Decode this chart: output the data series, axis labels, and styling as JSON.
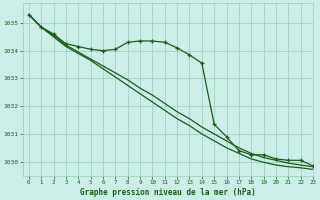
{
  "title": "Graphe pression niveau de la mer (hPa)",
  "background_color": "#cceee8",
  "grid_color": "#99ccbb",
  "line_color": "#1a5c1a",
  "xlim": [
    -0.5,
    23
  ],
  "ylim": [
    1029.5,
    1035.7
  ],
  "yticks": [
    1030,
    1031,
    1032,
    1033,
    1034,
    1035
  ],
  "xticks": [
    0,
    1,
    2,
    3,
    4,
    5,
    6,
    7,
    8,
    9,
    10,
    11,
    12,
    13,
    14,
    15,
    16,
    17,
    18,
    19,
    20,
    21,
    22,
    23
  ],
  "series1_x": [
    0,
    1,
    2,
    3,
    4,
    5,
    6,
    7,
    8,
    9,
    10,
    11,
    12,
    13,
    14,
    15,
    16,
    17,
    18,
    19,
    20,
    21,
    22,
    23
  ],
  "series1_y": [
    1035.3,
    1034.85,
    1034.6,
    1034.25,
    1034.15,
    1034.05,
    1034.0,
    1034.05,
    1034.3,
    1034.35,
    1034.35,
    1034.3,
    1034.1,
    1033.85,
    1033.55,
    1031.35,
    1030.9,
    1030.4,
    1030.25,
    1030.25,
    1030.1,
    1030.05,
    1030.05,
    1029.85
  ],
  "series2_x": [
    0,
    1,
    2,
    3,
    4,
    5,
    6,
    7,
    8,
    9,
    10,
    11,
    12,
    13,
    14,
    15,
    16,
    17,
    18,
    19,
    20,
    21,
    22,
    23
  ],
  "series2_y": [
    1035.3,
    1034.85,
    1034.55,
    1034.2,
    1033.95,
    1033.7,
    1033.45,
    1033.2,
    1032.95,
    1032.65,
    1032.4,
    1032.1,
    1031.8,
    1031.55,
    1031.25,
    1031.0,
    1030.75,
    1030.5,
    1030.3,
    1030.15,
    1030.05,
    1029.95,
    1029.88,
    1029.82
  ],
  "series3_x": [
    0,
    1,
    2,
    3,
    4,
    5,
    6,
    7,
    8,
    9,
    10,
    11,
    12,
    13,
    14,
    15,
    16,
    17,
    18,
    19,
    20,
    21,
    22,
    23
  ],
  "series3_y": [
    1035.3,
    1034.85,
    1034.5,
    1034.15,
    1033.9,
    1033.65,
    1033.35,
    1033.05,
    1032.75,
    1032.45,
    1032.15,
    1031.85,
    1031.55,
    1031.3,
    1031.0,
    1030.75,
    1030.5,
    1030.3,
    1030.1,
    1029.98,
    1029.88,
    1029.82,
    1029.78,
    1029.72
  ]
}
